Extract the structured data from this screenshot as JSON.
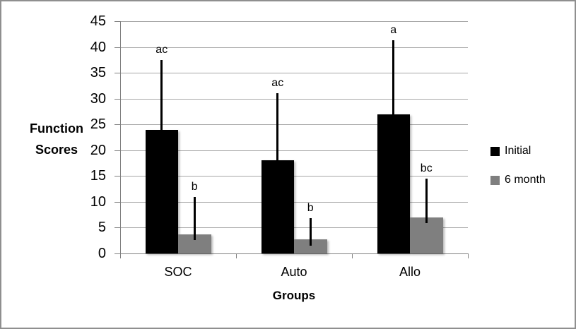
{
  "chart_data": {
    "type": "bar",
    "title": "",
    "categories": [
      "SOC",
      "Auto",
      "Allo"
    ],
    "series": [
      {
        "name": "Initial",
        "color": "#000000",
        "values": [
          24,
          18,
          27
        ],
        "error_high": [
          37.5,
          31,
          41.3
        ],
        "error_low": [
          24,
          18,
          27
        ],
        "sig_labels": [
          "ac",
          "ac",
          "a"
        ]
      },
      {
        "name": "6 month",
        "color": "#7f7f7f",
        "values": [
          3.7,
          2.8,
          7
        ],
        "error_high": [
          11,
          6.8,
          14.5
        ],
        "error_low": [
          2.6,
          1.5,
          5.9
        ],
        "sig_labels": [
          "b",
          "b",
          "bc"
        ]
      }
    ],
    "xlabel": "Groups",
    "ylabel": "Function Scores",
    "ylabel_lines": [
      "Function",
      "Scores"
    ],
    "ylim": [
      0,
      45
    ],
    "ytick_step": 5,
    "yticks": [
      0,
      5,
      10,
      15,
      20,
      25,
      30,
      35,
      40,
      45
    ],
    "legend_position": "right",
    "grid": "horizontal",
    "colors": {
      "gridline": "#a6a6a6",
      "axis": "#808080",
      "frame_border": "#8f8f8f",
      "background": "#ffffff"
    }
  }
}
